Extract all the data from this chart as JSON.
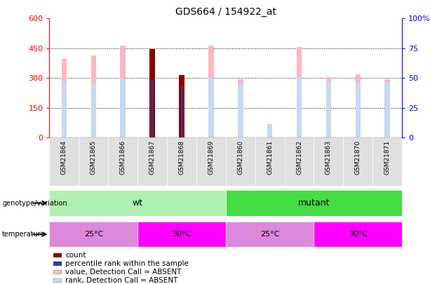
{
  "title": "GDS664 / 154922_at",
  "samples": [
    "GSM21864",
    "GSM21865",
    "GSM21866",
    "GSM21867",
    "GSM21868",
    "GSM21869",
    "GSM21860",
    "GSM21861",
    "GSM21862",
    "GSM21863",
    "GSM21870",
    "GSM21871"
  ],
  "count_values": [
    null,
    null,
    null,
    447,
    315,
    null,
    null,
    null,
    null,
    null,
    null,
    null
  ],
  "percentile_rank": [
    null,
    null,
    null,
    295,
    258,
    null,
    null,
    null,
    null,
    null,
    null,
    null
  ],
  "value_absent": [
    398,
    415,
    465,
    null,
    null,
    463,
    295,
    null,
    455,
    305,
    320,
    295
  ],
  "rank_absent": [
    285,
    270,
    295,
    null,
    null,
    300,
    270,
    68,
    305,
    280,
    275,
    280
  ],
  "left_ylim": [
    0,
    600
  ],
  "right_ylim": [
    0,
    100
  ],
  "left_yticks": [
    0,
    150,
    300,
    450,
    600
  ],
  "right_yticks": [
    0,
    25,
    50,
    75,
    100
  ],
  "left_yticklabels": [
    "0",
    "150",
    "300",
    "450",
    "600"
  ],
  "right_yticklabels": [
    "0",
    "25",
    "50",
    "75",
    "100%"
  ],
  "bar_width": 0.18,
  "color_count": "#8B0000",
  "color_percentile": "#1E40AF",
  "color_value_absent": "#FFB6C1",
  "color_rank_absent": "#C8D8F0",
  "genotype_wt_color": "#B0F0B0",
  "genotype_mutant_color": "#44DD44",
  "temp_25_color": "#DD88DD",
  "temp_30_color": "#FF00FF",
  "genotype_label": "genotype/variation",
  "temperature_label": "temperature",
  "wt_label": "wt",
  "mutant_label": "mutant",
  "legend_items": [
    {
      "label": "count",
      "color": "#8B0000"
    },
    {
      "label": "percentile rank within the sample",
      "color": "#1E40AF"
    },
    {
      "label": "value, Detection Call = ABSENT",
      "color": "#FFB6C1"
    },
    {
      "label": "rank, Detection Call = ABSENT",
      "color": "#C8D8F0"
    }
  ]
}
